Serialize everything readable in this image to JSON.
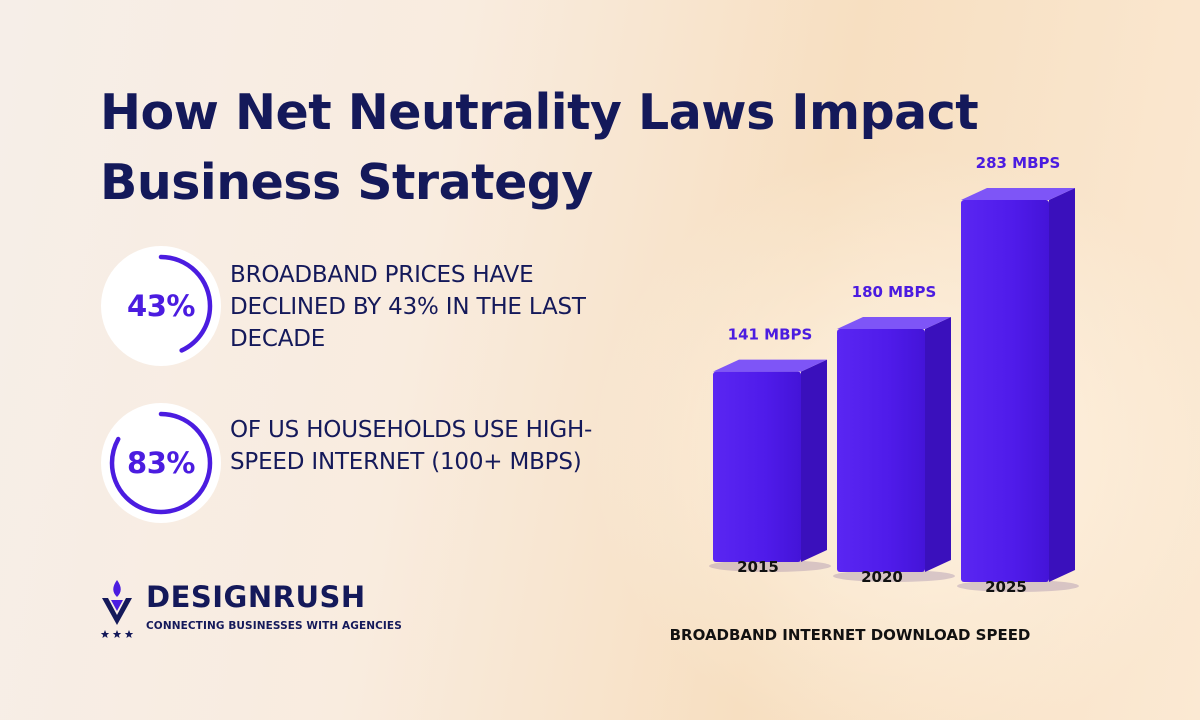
{
  "title": "How Net Neutrality Laws Impact Business Strategy",
  "stats": [
    {
      "value": "43%",
      "percent": 43,
      "text": "BROADBAND PRICES HAVE DECLINED BY 43% IN THE LAST DECADE"
    },
    {
      "value": "83%",
      "percent": 83,
      "text": "OF US HOUSEHOLDS USE HIGH-SPEED INTERNET (100+ MBPS)"
    }
  ],
  "brand": {
    "name": "DESIGNRUSH",
    "tagline": "CONNECTING BUSINESSES WITH AGENCIES"
  },
  "colors": {
    "navy": "#14195a",
    "accent": "#4b1ce0",
    "bar_front": "#4f1bea",
    "bar_top": "#7e55f7",
    "bar_side": "#3a10bc"
  },
  "chart_data": {
    "type": "bar",
    "categories": [
      "2015",
      "2020",
      "2025"
    ],
    "values": [
      141,
      180,
      283
    ],
    "data_labels": [
      "141 MBPS",
      "180 MBPS",
      "283 MBPS"
    ],
    "xlabel": "BROADBAND INTERNET DOWNLOAD SPEED",
    "ylabel": "",
    "unit": "MBPS"
  }
}
